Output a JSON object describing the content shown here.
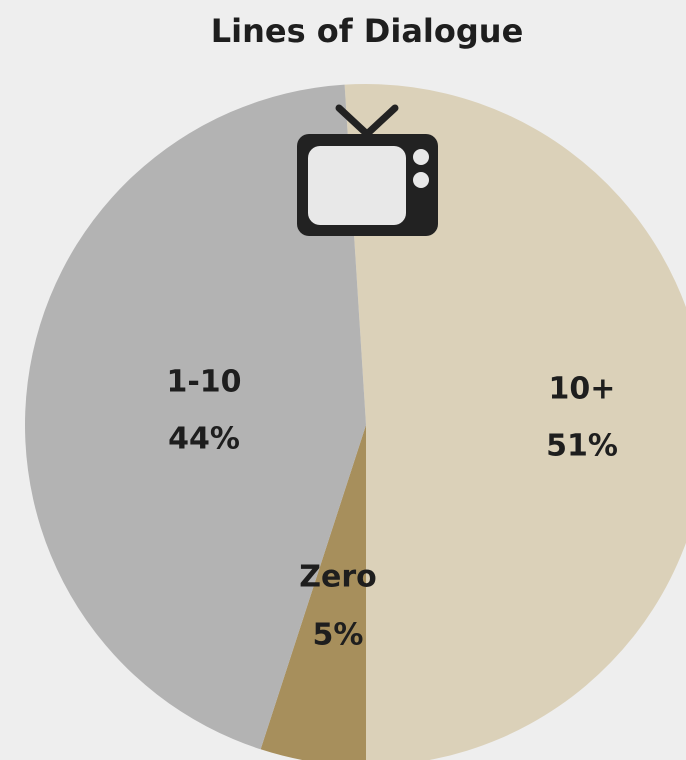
{
  "chart_data": {
    "type": "pie",
    "title": "Lines of Dialogue",
    "categories": [
      "10+",
      "Zero",
      "1-10"
    ],
    "values": [
      51,
      5,
      44
    ],
    "value_labels": [
      "51%",
      "5%",
      "44%"
    ],
    "colors": [
      "#dbd1b9",
      "#a78f5c",
      "#b3b3b3"
    ]
  }
}
